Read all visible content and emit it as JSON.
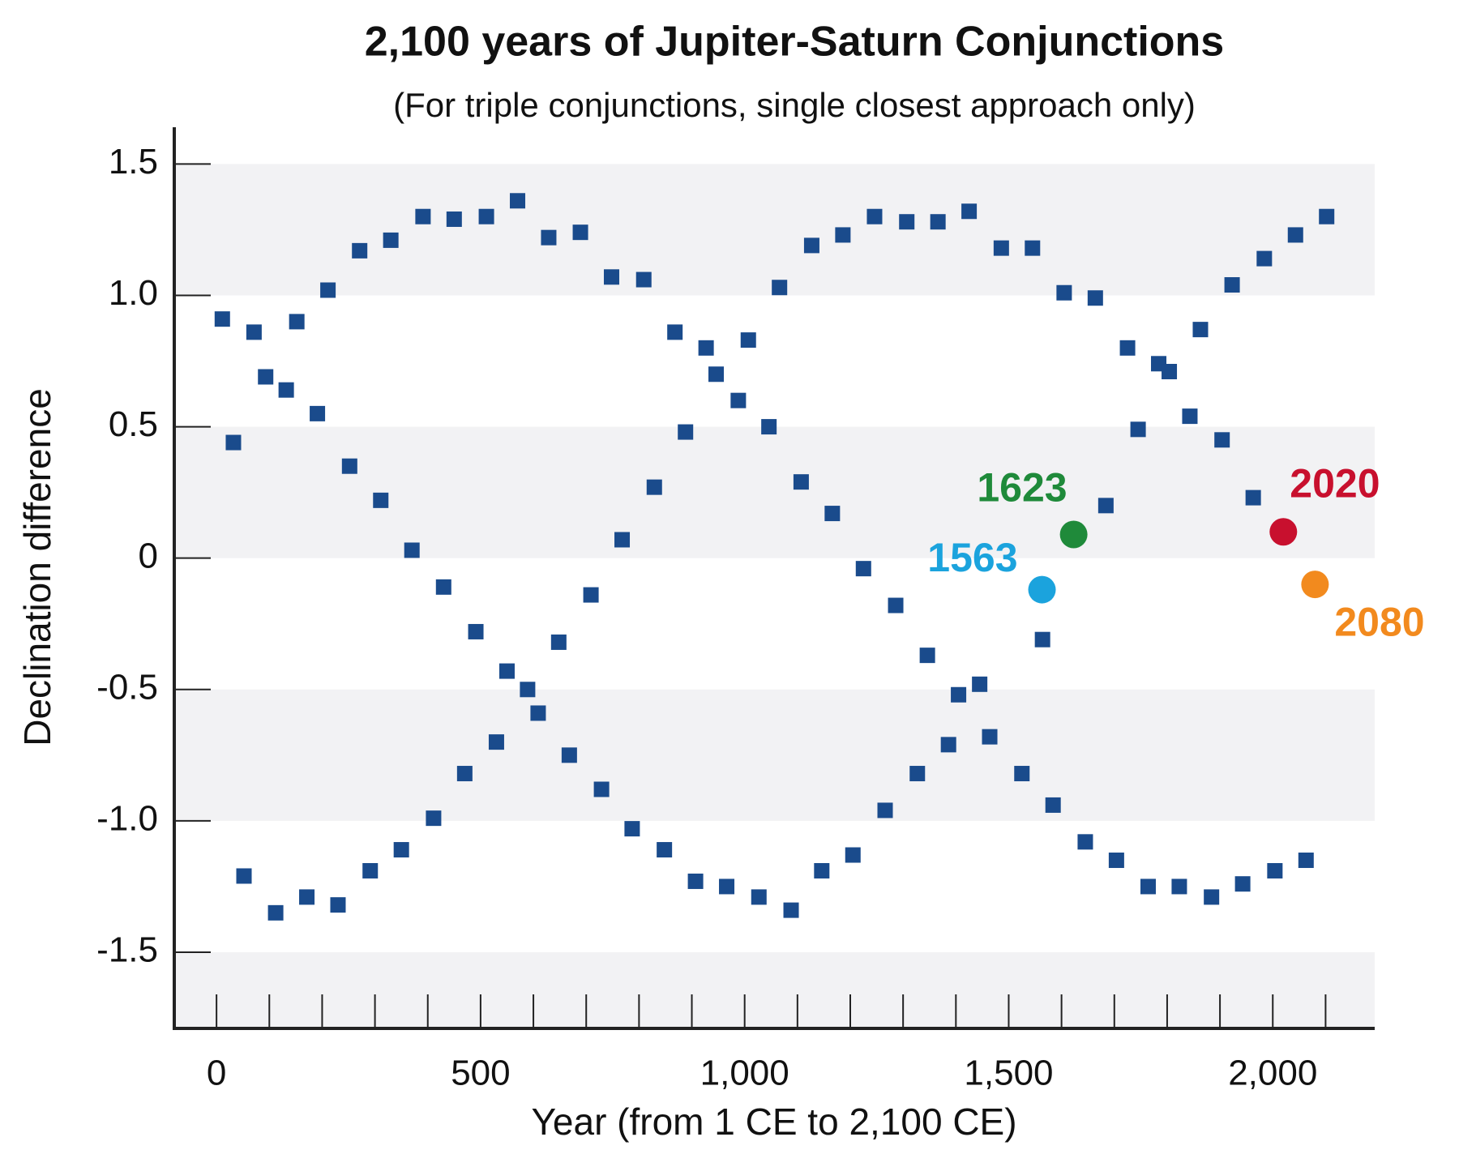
{
  "chart_data": {
    "type": "scatter",
    "title": "2,100 years of Jupiter-Saturn Conjunctions",
    "subtitle": "(For triple conjunctions, single closest approach only)",
    "x_label": "Year (from 1 CE to 2,100 CE)",
    "y_label": "Declination difference",
    "xlim": [
      -80,
      2193
    ],
    "ylim": [
      -1.79,
      1.64
    ],
    "xticks": [
      0,
      {
        "value": 500,
        "label": "500"
      },
      {
        "value": 1000,
        "label": "1,000"
      },
      {
        "value": 1500,
        "label": "1,500"
      },
      {
        "value": 2000,
        "label": "2,000"
      }
    ],
    "xminorticks": [
      100,
      200,
      300,
      400,
      600,
      700,
      800,
      900,
      1100,
      1200,
      1300,
      1400,
      1600,
      1700,
      1800,
      1900,
      2100
    ],
    "yticks": [
      1.5,
      {
        "value": 1,
        "label": "1.0"
      },
      0.5,
      0,
      -0.5,
      {
        "value": -1,
        "label": "-1.0"
      },
      -1.5
    ],
    "band_color": "#f2f2f4",
    "series": [
      {
        "color": "#1a4b8c",
        "x": [
          11,
          32,
          52,
          71,
          93,
          112,
          132,
          152,
          171,
          191,
          211,
          230,
          252,
          271,
          291,
          311,
          330,
          350,
          370,
          391,
          411,
          430,
          450,
          470,
          491,
          511,
          530,
          550,
          570,
          589,
          609,
          629,
          648,
          668,
          689,
          709,
          729,
          748,
          768,
          787,
          809,
          829,
          848,
          868,
          888,
          907,
          927,
          946,
          966,
          988,
          1007,
          1027,
          1046,
          1066,
          1088,
          1107,
          1127,
          1146,
          1166,
          1186,
          1205,
          1225,
          1246,
          1266,
          1286,
          1307,
          1327,
          1346,
          1366,
          1386,
          1405,
          1425,
          1445,
          1464,
          1486,
          1525,
          1545,
          1564,
          1584,
          1605,
          1645,
          1664,
          1684,
          1704,
          1725,
          1745,
          1764,
          1784,
          1804,
          1823,
          1843,
          1863,
          1884,
          1904,
          1923,
          1943,
          1963,
          1984,
          2004,
          2043,
          2063,
          2102
        ],
        "values": [
          0.91,
          0.44,
          -1.21,
          0.86,
          0.69,
          -1.35,
          0.64,
          0.9,
          -1.29,
          0.55,
          1.02,
          -1.32,
          0.35,
          1.17,
          -1.19,
          0.22,
          1.21,
          -1.11,
          0.03,
          1.3,
          -0.99,
          -0.11,
          1.29,
          -0.82,
          -0.28,
          1.3,
          -0.7,
          -0.43,
          1.36,
          -0.5,
          -0.59,
          1.22,
          -0.32,
          -0.75,
          1.24,
          -0.14,
          -0.88,
          1.07,
          0.07,
          -1.03,
          1.06,
          0.27,
          -1.11,
          0.86,
          0.48,
          -1.23,
          0.8,
          0.7,
          -1.25,
          0.6,
          0.83,
          -1.29,
          0.5,
          1.03,
          -1.34,
          0.29,
          1.19,
          -1.19,
          0.17,
          1.23,
          -1.13,
          -0.04,
          1.3,
          -0.96,
          -0.18,
          1.28,
          -0.82,
          -0.37,
          1.28,
          -0.71,
          -0.52,
          1.32,
          -0.48,
          -0.68,
          1.18,
          -0.82,
          1.18,
          -0.31,
          -0.94,
          1.01,
          -1.08,
          0.99,
          0.2,
          -1.15,
          0.8,
          0.49,
          -1.25,
          0.74,
          0.71,
          -1.25,
          0.54,
          0.87,
          -1.29,
          0.45,
          1.04,
          -1.24,
          0.23,
          1.14,
          -1.19,
          1.23,
          -1.15,
          1.3
        ]
      },
      {
        "name": "1563",
        "color": "#1ba3dd",
        "x": [
          1563
        ],
        "values": [
          -0.12
        ]
      },
      {
        "name": "1623",
        "color": "#1f8a3a",
        "x": [
          1623
        ],
        "values": [
          0.09
        ]
      },
      {
        "name": "2020",
        "color": "#c8102e",
        "x": [
          2020
        ],
        "values": [
          0.1
        ]
      },
      {
        "name": "2080",
        "color": "#f28a1e",
        "x": [
          2080
        ],
        "values": [
          -0.1
        ]
      }
    ]
  }
}
